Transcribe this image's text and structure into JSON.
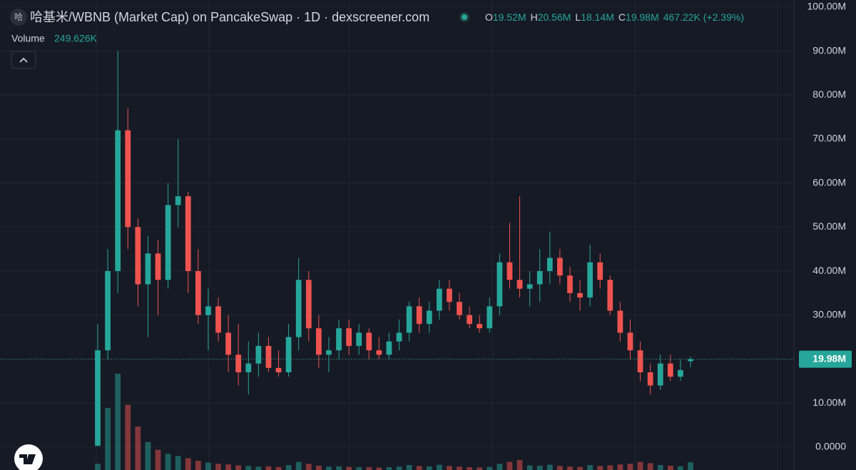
{
  "chart_data": {
    "type": "candlestick",
    "icon_text": "哈",
    "title": "哈基米/WBNB (Market Cap) on PancakeSwap · 1D · dexscreener.com",
    "legend": [
      {
        "key": "O",
        "label": "19.52M"
      },
      {
        "key": "H",
        "label": "20.56M"
      },
      {
        "key": "L",
        "label": "18.14M"
      },
      {
        "key": "C",
        "label": "19.98M"
      }
    ],
    "change_label": "467.22K (+2.39%)",
    "up_color": "#26a69a",
    "down_color": "#ef5350",
    "candles": {
      "open": [
        0.3,
        22,
        40,
        72,
        50,
        37,
        44,
        38,
        55,
        57,
        40,
        30,
        32,
        26,
        21,
        17,
        19,
        23,
        18,
        17,
        25,
        38,
        27,
        21,
        22,
        27,
        23,
        26,
        22,
        21,
        24,
        26,
        32,
        28,
        31,
        36,
        33,
        30,
        28,
        27,
        32,
        42,
        38,
        36,
        37,
        40,
        43,
        39,
        35,
        34,
        42,
        38,
        31,
        26,
        22,
        17,
        14,
        19,
        16,
        19.52
      ],
      "high": [
        28,
        45,
        90,
        77,
        52,
        48,
        47,
        60,
        70,
        58,
        45,
        36,
        34,
        30,
        28,
        24,
        26,
        25,
        22,
        28,
        43,
        40,
        30,
        25,
        29,
        29,
        28,
        27,
        25,
        26,
        29,
        33,
        34,
        33,
        38,
        38,
        35,
        32,
        30,
        34,
        44,
        51,
        57,
        40,
        45,
        49,
        45,
        41,
        38,
        46,
        44,
        39,
        33,
        29,
        24,
        19,
        21,
        21,
        20,
        20.56
      ],
      "low": [
        0.2,
        20,
        35,
        45,
        32,
        25,
        30,
        36,
        50,
        35,
        28,
        22,
        24,
        17,
        14,
        12,
        16,
        17,
        16,
        16,
        22,
        24,
        18,
        17,
        20,
        21,
        21,
        20,
        20,
        20,
        22,
        24,
        26,
        26,
        29,
        31,
        29,
        27,
        26,
        26,
        30,
        36,
        34,
        32,
        33,
        37,
        37,
        33,
        31,
        32,
        36,
        30,
        24,
        20,
        15,
        12,
        13,
        15,
        15,
        18.14
      ],
      "close": [
        22,
        40,
        72,
        50,
        37,
        44,
        38,
        55,
        57,
        40,
        30,
        32,
        26,
        21,
        17,
        19,
        23,
        18,
        17,
        25,
        38,
        27,
        21,
        22,
        27,
        23,
        26,
        22,
        21,
        24,
        26,
        32,
        28,
        31,
        36,
        33,
        30,
        28,
        27,
        32,
        42,
        38,
        36,
        37,
        40,
        43,
        39,
        35,
        34,
        42,
        38,
        31,
        26,
        22,
        17,
        14,
        19,
        16,
        17.5,
        19.98
      ]
    },
    "volume": {
      "label": "Volume",
      "value_label": "249.626K",
      "values": [
        200,
        2000,
        3100,
        2100,
        1400,
        900,
        650,
        520,
        450,
        380,
        300,
        240,
        200,
        180,
        150,
        130,
        110,
        120,
        100,
        160,
        260,
        200,
        140,
        110,
        120,
        100,
        90,
        90,
        80,
        90,
        110,
        160,
        130,
        120,
        170,
        130,
        110,
        90,
        80,
        100,
        200,
        260,
        320,
        150,
        140,
        170,
        130,
        110,
        100,
        160,
        130,
        150,
        180,
        200,
        260,
        220,
        160,
        140,
        120,
        250
      ]
    },
    "last_price": {
      "value": 19.98,
      "label": "19.98M"
    },
    "ylim": [
      -5.2,
      101.6
    ],
    "yticks": [
      {
        "value": 0,
        "label": "0.0000"
      },
      {
        "value": 10,
        "label": "10.00M"
      },
      {
        "value": 20,
        "label": "20.00M"
      },
      {
        "value": 30,
        "label": "30.00M"
      },
      {
        "value": 40,
        "label": "40.00M"
      },
      {
        "value": 50,
        "label": "50.00M"
      },
      {
        "value": 60,
        "label": "60.00M"
      },
      {
        "value": 70,
        "label": "70.00M"
      },
      {
        "value": 80,
        "label": "80.00M"
      },
      {
        "value": 90,
        "label": "90.00M"
      },
      {
        "value": 100,
        "label": "100.00M"
      }
    ],
    "grid": true
  }
}
